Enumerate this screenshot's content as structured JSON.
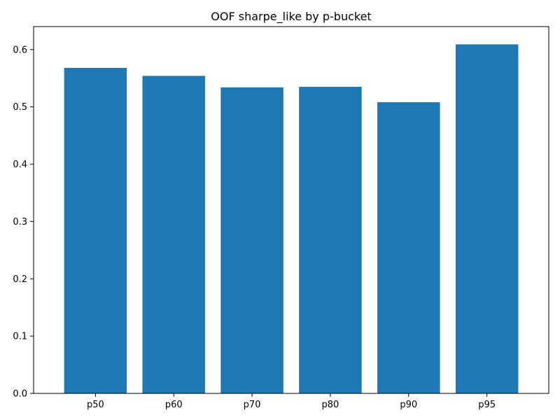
{
  "chart_data": {
    "type": "bar",
    "title": "OOF sharpe_like by p-bucket",
    "xlabel": "",
    "ylabel": "",
    "categories": [
      "p50",
      "p60",
      "p70",
      "p80",
      "p90",
      "p95"
    ],
    "values": [
      0.568,
      0.554,
      0.534,
      0.535,
      0.508,
      0.609
    ],
    "ylim": [
      0,
      0.64
    ],
    "yticks": [
      0.0,
      0.1,
      0.2,
      0.3,
      0.4,
      0.5,
      0.6
    ],
    "ytick_labels": [
      "0.0",
      "0.1",
      "0.2",
      "0.3",
      "0.4",
      "0.5",
      "0.6"
    ],
    "bar_color": "#1f77b4",
    "grid": false,
    "legend": false
  }
}
